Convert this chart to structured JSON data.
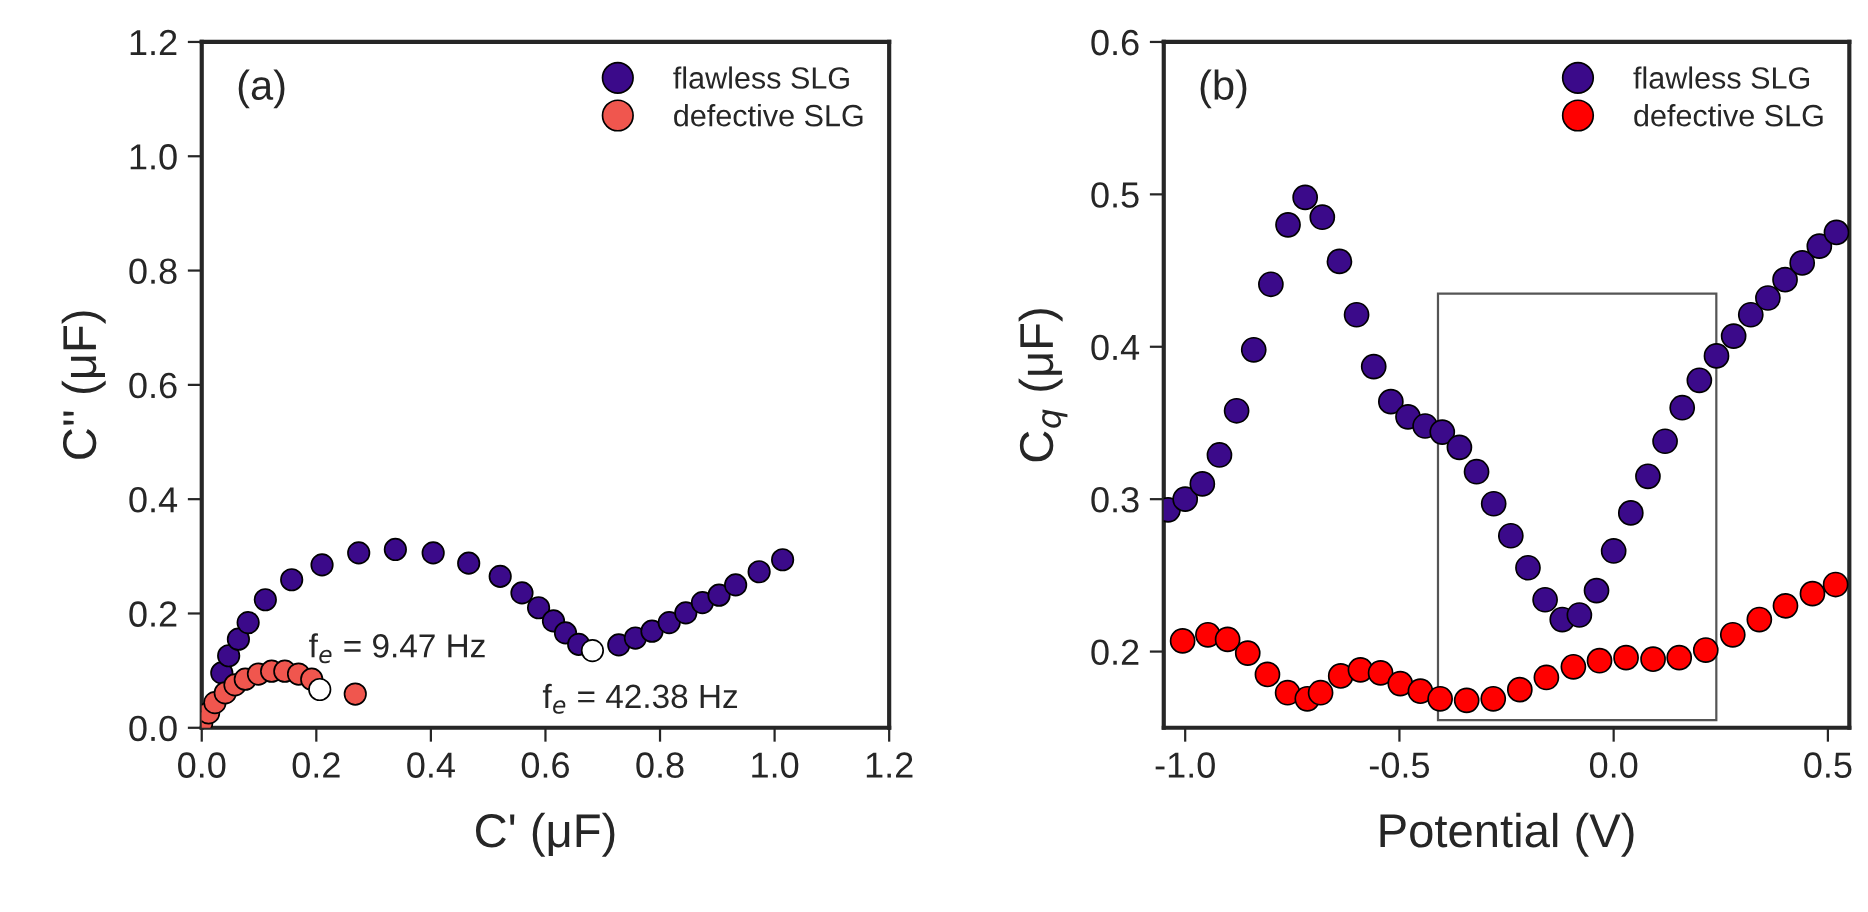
{
  "chart_data": [
    {
      "type": "scatter",
      "title": "(a)",
      "xlabel": "C' (μF)",
      "ylabel": "C'' (μF)",
      "xlim": [
        0,
        1.2
      ],
      "ylim": [
        0,
        1.2
      ],
      "xticks": [
        {
          "value": 0,
          "label": "0.0"
        },
        {
          "value": 0.2,
          "label": "0.2"
        },
        {
          "value": 0.4,
          "label": "0.4"
        },
        {
          "value": 0.6,
          "label": "0.6"
        },
        {
          "value": 0.8,
          "label": "0.8"
        },
        {
          "value": 1,
          "label": "1.0"
        },
        {
          "value": 1.2,
          "label": "1.2"
        }
      ],
      "yticks": [
        {
          "value": 0,
          "label": "0.0"
        },
        {
          "value": 0.2,
          "label": "0.2"
        },
        {
          "value": 0.4,
          "label": "0.4"
        },
        {
          "value": 0.6,
          "label": "0.6"
        },
        {
          "value": 0.8,
          "label": "0.8"
        },
        {
          "value": 1,
          "label": "1.0"
        },
        {
          "value": 1.2,
          "label": "1.2"
        }
      ],
      "grid": false,
      "legend": "top right",
      "marker": "circle",
      "series": [
        {
          "name": "flawless SLG",
          "color": "#3b0a8a",
          "x": [
            0.035,
            0.047,
            0.064,
            0.081,
            0.111,
            0.157,
            0.21,
            0.274,
            0.338,
            0.404,
            0.466,
            0.521,
            0.559,
            0.588,
            0.614,
            0.635,
            0.658,
            0.728,
            0.757,
            0.786,
            0.816,
            0.845,
            0.874,
            0.903,
            0.932,
            0.973,
            1.014
          ],
          "values": [
            0.096,
            0.126,
            0.155,
            0.184,
            0.224,
            0.259,
            0.285,
            0.306,
            0.312,
            0.306,
            0.288,
            0.265,
            0.236,
            0.21,
            0.187,
            0.166,
            0.146,
            0.145,
            0.157,
            0.169,
            0.184,
            0.201,
            0.219,
            0.232,
            0.25,
            0.273,
            0.294
          ]
        },
        {
          "name": "defective SLG",
          "color": "#f0564e",
          "x": [
            0.0,
            0.012,
            0.023,
            0.041,
            0.058,
            0.076,
            0.099,
            0.122,
            0.145,
            0.169,
            0.192,
            0.268
          ],
          "values": [
            0.009,
            0.026,
            0.044,
            0.061,
            0.075,
            0.085,
            0.094,
            0.099,
            0.099,
            0.094,
            0.085,
            0.059
          ]
        },
        {
          "color": "#ffffff",
          "x": [
            0.206,
            0.682
          ],
          "values": [
            0.067,
            0.135
          ]
        }
      ],
      "annotations": [
        {
          "text": "f$_{e}$ = 9.47 Hz",
          "x": 0.206,
          "y": 0.067
        },
        {
          "text": "f$_{e}$ = 42.38 Hz",
          "x": 0.682,
          "y": 0.135
        }
      ]
    },
    {
      "type": "scatter",
      "title": "(b)",
      "xlabel": "Potential (V)",
      "ylabel": "C$_{q}$ (μF)",
      "xlim": [
        -1.05,
        0.55
      ],
      "ylim": [
        0.15,
        0.6
      ],
      "xticks": [
        {
          "value": -1,
          "label": "-1.0"
        },
        {
          "value": -0.5,
          "label": "-0.5"
        },
        {
          "value": 0,
          "label": "0.0"
        },
        {
          "value": 0.5,
          "label": "0.5"
        }
      ],
      "yticks": [
        0.2,
        0.3,
        0.4,
        0.5,
        0.6
      ],
      "grid": false,
      "legend": "top right",
      "marker": "circle",
      "series": [
        {
          "name": "flawless SLG",
          "color": "#3b0a8a",
          "x": [
            -1.04,
            -1.0,
            -0.96,
            -0.92,
            -0.88,
            -0.84,
            -0.8,
            -0.76,
            -0.72,
            -0.68,
            -0.64,
            -0.6,
            -0.56,
            -0.52,
            -0.48,
            -0.44,
            -0.4,
            -0.36,
            -0.32,
            -0.28,
            -0.24,
            -0.2,
            -0.16,
            -0.12,
            -0.08,
            -0.04,
            0.0,
            0.04,
            0.08,
            0.12,
            0.16,
            0.2,
            0.24,
            0.28,
            0.32,
            0.36,
            0.4,
            0.44,
            0.48,
            0.52
          ],
          "values": [
            0.293,
            0.3,
            0.31,
            0.329,
            0.358,
            0.398,
            0.441,
            0.48,
            0.498,
            0.485,
            0.456,
            0.421,
            0.387,
            0.364,
            0.354,
            0.348,
            0.344,
            0.334,
            0.318,
            0.297,
            0.276,
            0.255,
            0.234,
            0.221,
            0.224,
            0.24,
            0.266,
            0.291,
            0.315,
            0.338,
            0.36,
            0.378,
            0.394,
            0.407,
            0.421,
            0.432,
            0.444,
            0.455,
            0.466,
            0.475
          ]
        },
        {
          "name": "defective SLG",
          "color": "#ff0000",
          "x": [
            -1.006,
            -0.947,
            -0.901,
            -0.854,
            -0.808,
            -0.761,
            -0.715,
            -0.684,
            -0.637,
            -0.591,
            -0.544,
            -0.498,
            -0.451,
            -0.405,
            -0.343,
            -0.281,
            -0.219,
            -0.157,
            -0.094,
            -0.033,
            0.029,
            0.092,
            0.153,
            0.215,
            0.278,
            0.34,
            0.401,
            0.464,
            0.518
          ],
          "values": [
            0.207,
            0.211,
            0.208,
            0.199,
            0.185,
            0.173,
            0.169,
            0.173,
            0.184,
            0.188,
            0.186,
            0.179,
            0.174,
            0.169,
            0.168,
            0.169,
            0.175,
            0.183,
            0.19,
            0.194,
            0.196,
            0.195,
            0.196,
            0.201,
            0.211,
            0.221,
            0.23,
            0.238,
            0.244
          ]
        }
      ]
    }
  ]
}
